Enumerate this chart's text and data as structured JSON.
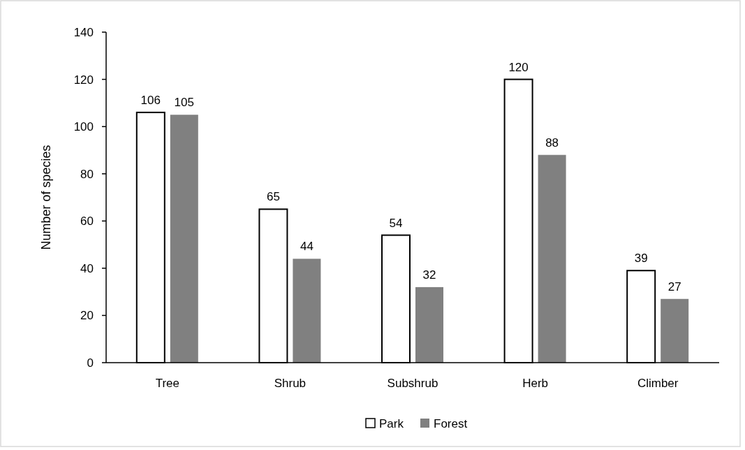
{
  "chart_data": {
    "type": "bar",
    "ylabel": "Number of species",
    "categories": [
      "Tree",
      "Shrub",
      "Subshrub",
      "Herb",
      "Climber"
    ],
    "series": [
      {
        "name": "Park",
        "color": "#ffffff",
        "values": [
          106,
          65,
          54,
          120,
          39
        ]
      },
      {
        "name": "Forest",
        "color": "#808080",
        "values": [
          105,
          44,
          32,
          88,
          27
        ]
      }
    ],
    "ylim": [
      0,
      140
    ],
    "yticks": [
      0,
      20,
      40,
      60,
      80,
      100,
      120,
      140
    ],
    "grid": false,
    "legend": "bottom",
    "data_labels": true
  }
}
